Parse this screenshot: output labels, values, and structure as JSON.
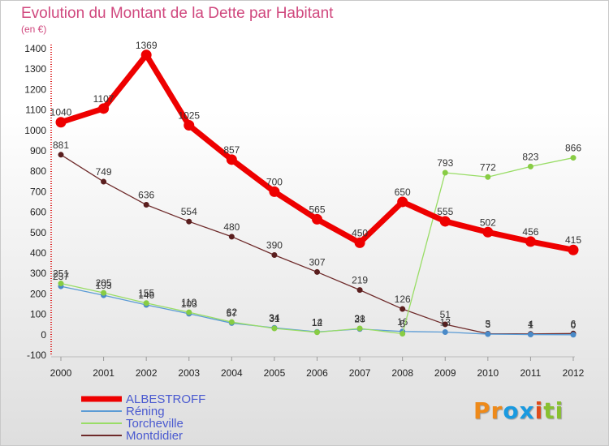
{
  "chart_data": {
    "type": "line",
    "title": "Evolution du Montant de la Dette par Habitant",
    "subtitle": "(en €)",
    "x": [
      "2000",
      "2001",
      "2002",
      "2003",
      "2004",
      "2005",
      "2006",
      "2007",
      "2008",
      "2009",
      "2010",
      "2011",
      "2012"
    ],
    "yticks": [
      "-100",
      "0",
      "100",
      "200",
      "300",
      "400",
      "500",
      "600",
      "700",
      "800",
      "900",
      "1000",
      "1100",
      "1200",
      "1300",
      "1400"
    ],
    "ylim": [
      -100,
      1400
    ],
    "series": [
      {
        "name": "Montdidier",
        "color": "#6e2a2a",
        "dot": "#5a1e1e",
        "width": 1.3,
        "r": 3,
        "values": [
          881,
          749,
          636,
          554,
          480,
          390,
          307,
          219,
          126,
          51,
          5,
          4,
          6
        ],
        "labels": [
          "881",
          "749",
          "636",
          "554",
          "480",
          "390",
          "307",
          "219",
          "126",
          "51",
          "5",
          "4",
          "6"
        ]
      },
      {
        "name": "Réning",
        "color": "#5b9bd5",
        "dot": "#4a8ac8",
        "width": 1.3,
        "r": 3,
        "values": [
          237,
          193,
          146,
          103,
          57,
          34,
          14,
          28,
          16,
          13,
          3,
          1,
          0
        ],
        "labels": [
          "237",
          "193",
          "146",
          "103",
          "57",
          "34",
          "14",
          "28",
          "16",
          "13",
          "3",
          "1",
          "0"
        ]
      },
      {
        "name": "Torcheville",
        "color": "#99dd66",
        "dot": "#88cc44",
        "width": 1.3,
        "r": 3,
        "values": [
          251,
          205,
          155,
          110,
          62,
          31,
          12,
          31,
          5,
          793,
          772,
          823,
          866
        ],
        "labels": [
          "251",
          "205",
          "155",
          "110",
          "62",
          "31",
          "12",
          "31",
          "5",
          "793",
          "772",
          "823",
          "866"
        ]
      },
      {
        "name": "ALBESTROFF",
        "color": "#ee0000",
        "dot": "#ee0000",
        "width": 7,
        "r": 6,
        "values": [
          1040,
          1107,
          1369,
          1025,
          857,
          700,
          565,
          450,
          650,
          555,
          502,
          456,
          415
        ],
        "labels": [
          "1040",
          "1107",
          "1369",
          "1025",
          "857",
          "700",
          "565",
          "450",
          "650",
          "555",
          "502",
          "456",
          "415"
        ]
      }
    ],
    "legend": [
      {
        "name": "ALBESTROFF",
        "color": "#ee0000",
        "text_color": "#4a5ad0",
        "thickness": 7
      },
      {
        "name": "Réning",
        "color": "#5b9bd5",
        "text_color": "#4a5ad0",
        "thickness": 2
      },
      {
        "name": "Torcheville",
        "color": "#99dd66",
        "text_color": "#4a5ad0",
        "thickness": 2
      },
      {
        "name": "Montdidier",
        "color": "#6e2a2a",
        "text_color": "#4a5ad0",
        "thickness": 2
      }
    ]
  },
  "logo": {
    "letters": [
      "P",
      "r",
      "o",
      "x",
      "i",
      "t",
      "i"
    ],
    "colors": [
      "#ee8a1a",
      "#ee8a1a",
      "#1a9ae0",
      "#1a9ae0",
      "#e04a1a",
      "#88c030",
      "#88c030"
    ]
  }
}
